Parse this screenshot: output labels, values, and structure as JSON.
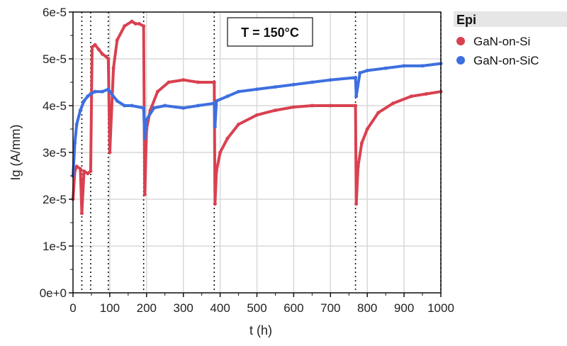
{
  "chart_data": {
    "type": "scatter",
    "title": "",
    "annotation": "T = 150°C",
    "xlabel": "t (h)",
    "ylabel": "Ig (A/mm)",
    "xlim": [
      0,
      1000
    ],
    "ylim": [
      0,
      6e-05
    ],
    "xticks": [
      0,
      100,
      200,
      300,
      400,
      500,
      600,
      700,
      800,
      900,
      1000
    ],
    "yticks": [
      0,
      1e-05,
      2e-05,
      3e-05,
      4e-05,
      5e-05,
      6e-05
    ],
    "ytick_labels": [
      "0e+0",
      "1e-5",
      "2e-5",
      "3e-5",
      "4e-5",
      "5e-5",
      "6e-5"
    ],
    "grid": true,
    "vlines": [
      24,
      48,
      96,
      192,
      384,
      768,
      1000
    ],
    "legend": {
      "title": "Epi",
      "position": "right"
    },
    "series": [
      {
        "name": "GaN-on-Si",
        "color": "#d94150",
        "x": [
          0,
          5,
          10,
          20,
          24,
          30,
          40,
          48,
          52,
          60,
          70,
          80,
          90,
          96,
          100,
          110,
          120,
          140,
          160,
          170,
          180,
          192,
          195,
          200,
          210,
          230,
          260,
          300,
          340,
          384,
          386,
          390,
          400,
          420,
          450,
          500,
          550,
          600,
          650,
          700,
          768,
          770,
          775,
          785,
          800,
          830,
          870,
          920,
          960,
          1000
        ],
        "y": [
          2e-05,
          2.6e-05,
          2.7e-05,
          2.65e-05,
          1.7e-05,
          2.6e-05,
          2.55e-05,
          2.6e-05,
          5.25e-05,
          5.3e-05,
          5.2e-05,
          5.1e-05,
          5.05e-05,
          5e-05,
          3e-05,
          4.8e-05,
          5.4e-05,
          5.7e-05,
          5.8e-05,
          5.75e-05,
          5.75e-05,
          5.7e-05,
          2.1e-05,
          3.5e-05,
          3.9e-05,
          4.3e-05,
          4.5e-05,
          4.55e-05,
          4.5e-05,
          4.5e-05,
          1.9e-05,
          2.6e-05,
          3e-05,
          3.3e-05,
          3.6e-05,
          3.8e-05,
          3.9e-05,
          3.97e-05,
          4e-05,
          4e-05,
          4e-05,
          1.9e-05,
          2.7e-05,
          3.2e-05,
          3.5e-05,
          3.85e-05,
          4.05e-05,
          4.2e-05,
          4.25e-05,
          4.3e-05
        ]
      },
      {
        "name": "GaN-on-SiC",
        "color": "#3d6fdf",
        "x": [
          0,
          5,
          10,
          20,
          30,
          40,
          48,
          60,
          80,
          96,
          100,
          120,
          140,
          160,
          192,
          195,
          200,
          220,
          250,
          300,
          340,
          384,
          386,
          390,
          420,
          450,
          500,
          550,
          600,
          650,
          700,
          768,
          770,
          780,
          800,
          850,
          900,
          950,
          1000
        ],
        "y": [
          2.5e-05,
          3.2e-05,
          3.6e-05,
          3.9e-05,
          4.1e-05,
          4.2e-05,
          4.25e-05,
          4.3e-05,
          4.3e-05,
          4.35e-05,
          4.3e-05,
          4.1e-05,
          4e-05,
          4e-05,
          3.95e-05,
          3.3e-05,
          3.7e-05,
          3.95e-05,
          4e-05,
          3.95e-05,
          4e-05,
          4.05e-05,
          3.55e-05,
          4.1e-05,
          4.2e-05,
          4.3e-05,
          4.35e-05,
          4.4e-05,
          4.45e-05,
          4.5e-05,
          4.55e-05,
          4.6e-05,
          4.2e-05,
          4.7e-05,
          4.75e-05,
          4.8e-05,
          4.85e-05,
          4.85e-05,
          4.9e-05
        ]
      }
    ]
  }
}
